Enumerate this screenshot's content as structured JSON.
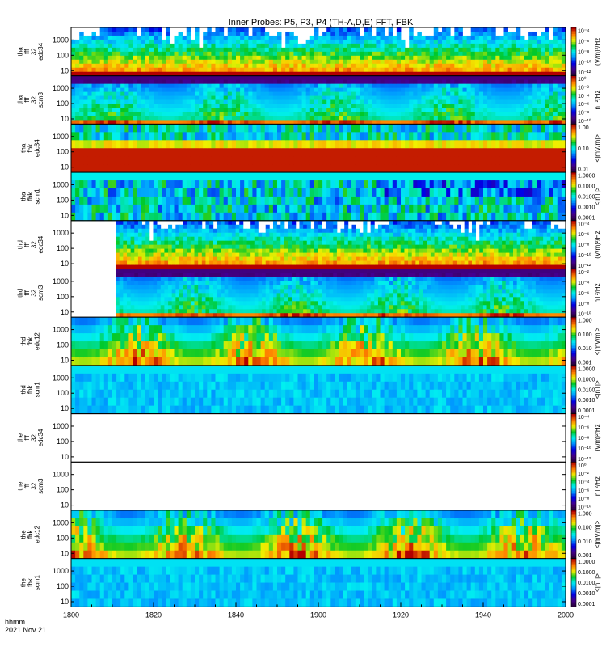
{
  "chart_data": {
    "type": "heatmap",
    "title": "Inner Probes: P5, P3, P4 (TH-A,D,E) FFT, FBK",
    "x": {
      "ticks": [
        "1800",
        "1820",
        "1840",
        "1900",
        "1920",
        "1940",
        "2000"
      ],
      "footer_label": "hhmm",
      "date_label": "2021 Nov 21"
    },
    "panels": [
      {
        "id": "tha-fff32-edc34",
        "ylabel": [
          "tha",
          "fff",
          "32",
          "edc34"
        ],
        "yticks": [
          "1000",
          "100",
          "10"
        ],
        "colorbar_ticks": [
          "10⁻⁴",
          "10⁻⁶",
          "10⁻⁸",
          "10⁻¹⁰",
          "10⁻¹²"
        ],
        "units": "(V/m)²/Hz",
        "kind": "fff_e",
        "start": 0,
        "spikes": true,
        "seed": 11
      },
      {
        "id": "tha-fff32-scm3",
        "ylabel": [
          "tha",
          "fff",
          "32",
          "scm3"
        ],
        "yticks": [
          "1000",
          "100",
          "10"
        ],
        "colorbar_ticks": [
          "10⁰",
          "10⁻²",
          "10⁻⁴",
          "10⁻⁶",
          "10⁻⁸",
          "10⁻¹⁰"
        ],
        "units": "nT²/Hz",
        "kind": "fff_b",
        "start": 0,
        "seed": 12
      },
      {
        "id": "tha-fbk-edc34",
        "ylabel": [
          "tha",
          "fbk",
          "edc34"
        ],
        "yticks": [
          "1000",
          "100",
          "10"
        ],
        "colorbar_ticks": [
          "1.00",
          "0.10",
          "0.01"
        ],
        "units": "<|mV/m|>",
        "kind": "fbk_e_red",
        "start": 0,
        "seed": 13
      },
      {
        "id": "tha-fbk-scm1",
        "ylabel": [
          "tha",
          "fbk",
          "scm1"
        ],
        "yticks": [
          "1000",
          "100",
          "10"
        ],
        "colorbar_ticks": [
          "1.0000",
          "0.1000",
          "0.0100",
          "0.0010",
          "0.0001"
        ],
        "units": "<|nT|>",
        "kind": "fbk_b",
        "start": 0,
        "seed": 14
      },
      {
        "id": "thd-fff32-edc34",
        "ylabel": [
          "thd",
          "fff",
          "32",
          "edc34"
        ],
        "yticks": [
          "1000",
          "100",
          "10"
        ],
        "colorbar_ticks": [
          "10⁻⁴",
          "10⁻⁶",
          "10⁻⁸",
          "10⁻¹⁰",
          "10⁻¹²"
        ],
        "units": "(V/m)²/Hz",
        "kind": "fff_e",
        "start": 0.09,
        "spikes": true,
        "seed": 21
      },
      {
        "id": "thd-fff32-scm3",
        "ylabel": [
          "thd",
          "fff",
          "32",
          "scm3"
        ],
        "yticks": [
          "1000",
          "100",
          "10"
        ],
        "colorbar_ticks": [
          "10⁻²",
          "10⁻⁴",
          "10⁻⁶",
          "10⁻⁸",
          "10⁻¹⁰"
        ],
        "units": "nT²/Hz",
        "kind": "fff_b",
        "start": 0.09,
        "seed": 22
      },
      {
        "id": "thd-fbk-edc12",
        "ylabel": [
          "thd",
          "fbk",
          "edc12"
        ],
        "yticks": [
          "1000",
          "100",
          "10"
        ],
        "colorbar_ticks": [
          "1.000",
          "0.100",
          "0.010",
          "0.001"
        ],
        "units": "<|mV/m|>",
        "kind": "fbk_e",
        "start": 0,
        "seed": 23
      },
      {
        "id": "thd-fbk-scm1",
        "ylabel": [
          "thd",
          "fbk",
          "scm1"
        ],
        "yticks": [
          "1000",
          "100",
          "10"
        ],
        "colorbar_ticks": [
          "1.0000",
          "0.1000",
          "0.0100",
          "0.0010",
          "0.0001"
        ],
        "units": "<|nT|>",
        "kind": "fbk_b_cyan",
        "start": 0,
        "seed": 24
      },
      {
        "id": "the-fff32-edc34",
        "ylabel": [
          "the",
          "fff",
          "32",
          "edc34"
        ],
        "yticks": [
          "1000",
          "100",
          "10"
        ],
        "colorbar_ticks": [
          "10⁻⁴",
          "10⁻⁶",
          "10⁻⁸",
          "10⁻¹⁰",
          "10⁻¹²"
        ],
        "units": "(V/m)²/Hz",
        "kind": "empty",
        "start": 0,
        "seed": 31
      },
      {
        "id": "the-fff32-scm3",
        "ylabel": [
          "the",
          "fff",
          "32",
          "scm3"
        ],
        "yticks": [
          "1000",
          "100",
          "10"
        ],
        "colorbar_ticks": [
          "10⁰",
          "10⁻²",
          "10⁻⁴",
          "10⁻⁶",
          "10⁻⁸",
          "10⁻¹⁰"
        ],
        "units": "nT²/Hz",
        "kind": "empty",
        "start": 0,
        "seed": 32
      },
      {
        "id": "the-fbk-edc12",
        "ylabel": [
          "the",
          "fbk",
          "edc12"
        ],
        "yticks": [
          "1000",
          "100",
          "10"
        ],
        "colorbar_ticks": [
          "1.000",
          "0.100",
          "0.010",
          "0.001"
        ],
        "units": "<|mV/m|>",
        "kind": "fbk_e",
        "start": 0,
        "seed": 33
      },
      {
        "id": "the-fbk-scm1",
        "ylabel": [
          "the",
          "fbk",
          "scm1"
        ],
        "yticks": [
          "1000",
          "100",
          "10"
        ],
        "colorbar_ticks": [
          "1.0000",
          "0.1000",
          "0.0100",
          "0.0010",
          "0.0001"
        ],
        "units": "<|nT|>",
        "kind": "fbk_b_cyan",
        "start": 0,
        "seed": 34
      }
    ]
  }
}
